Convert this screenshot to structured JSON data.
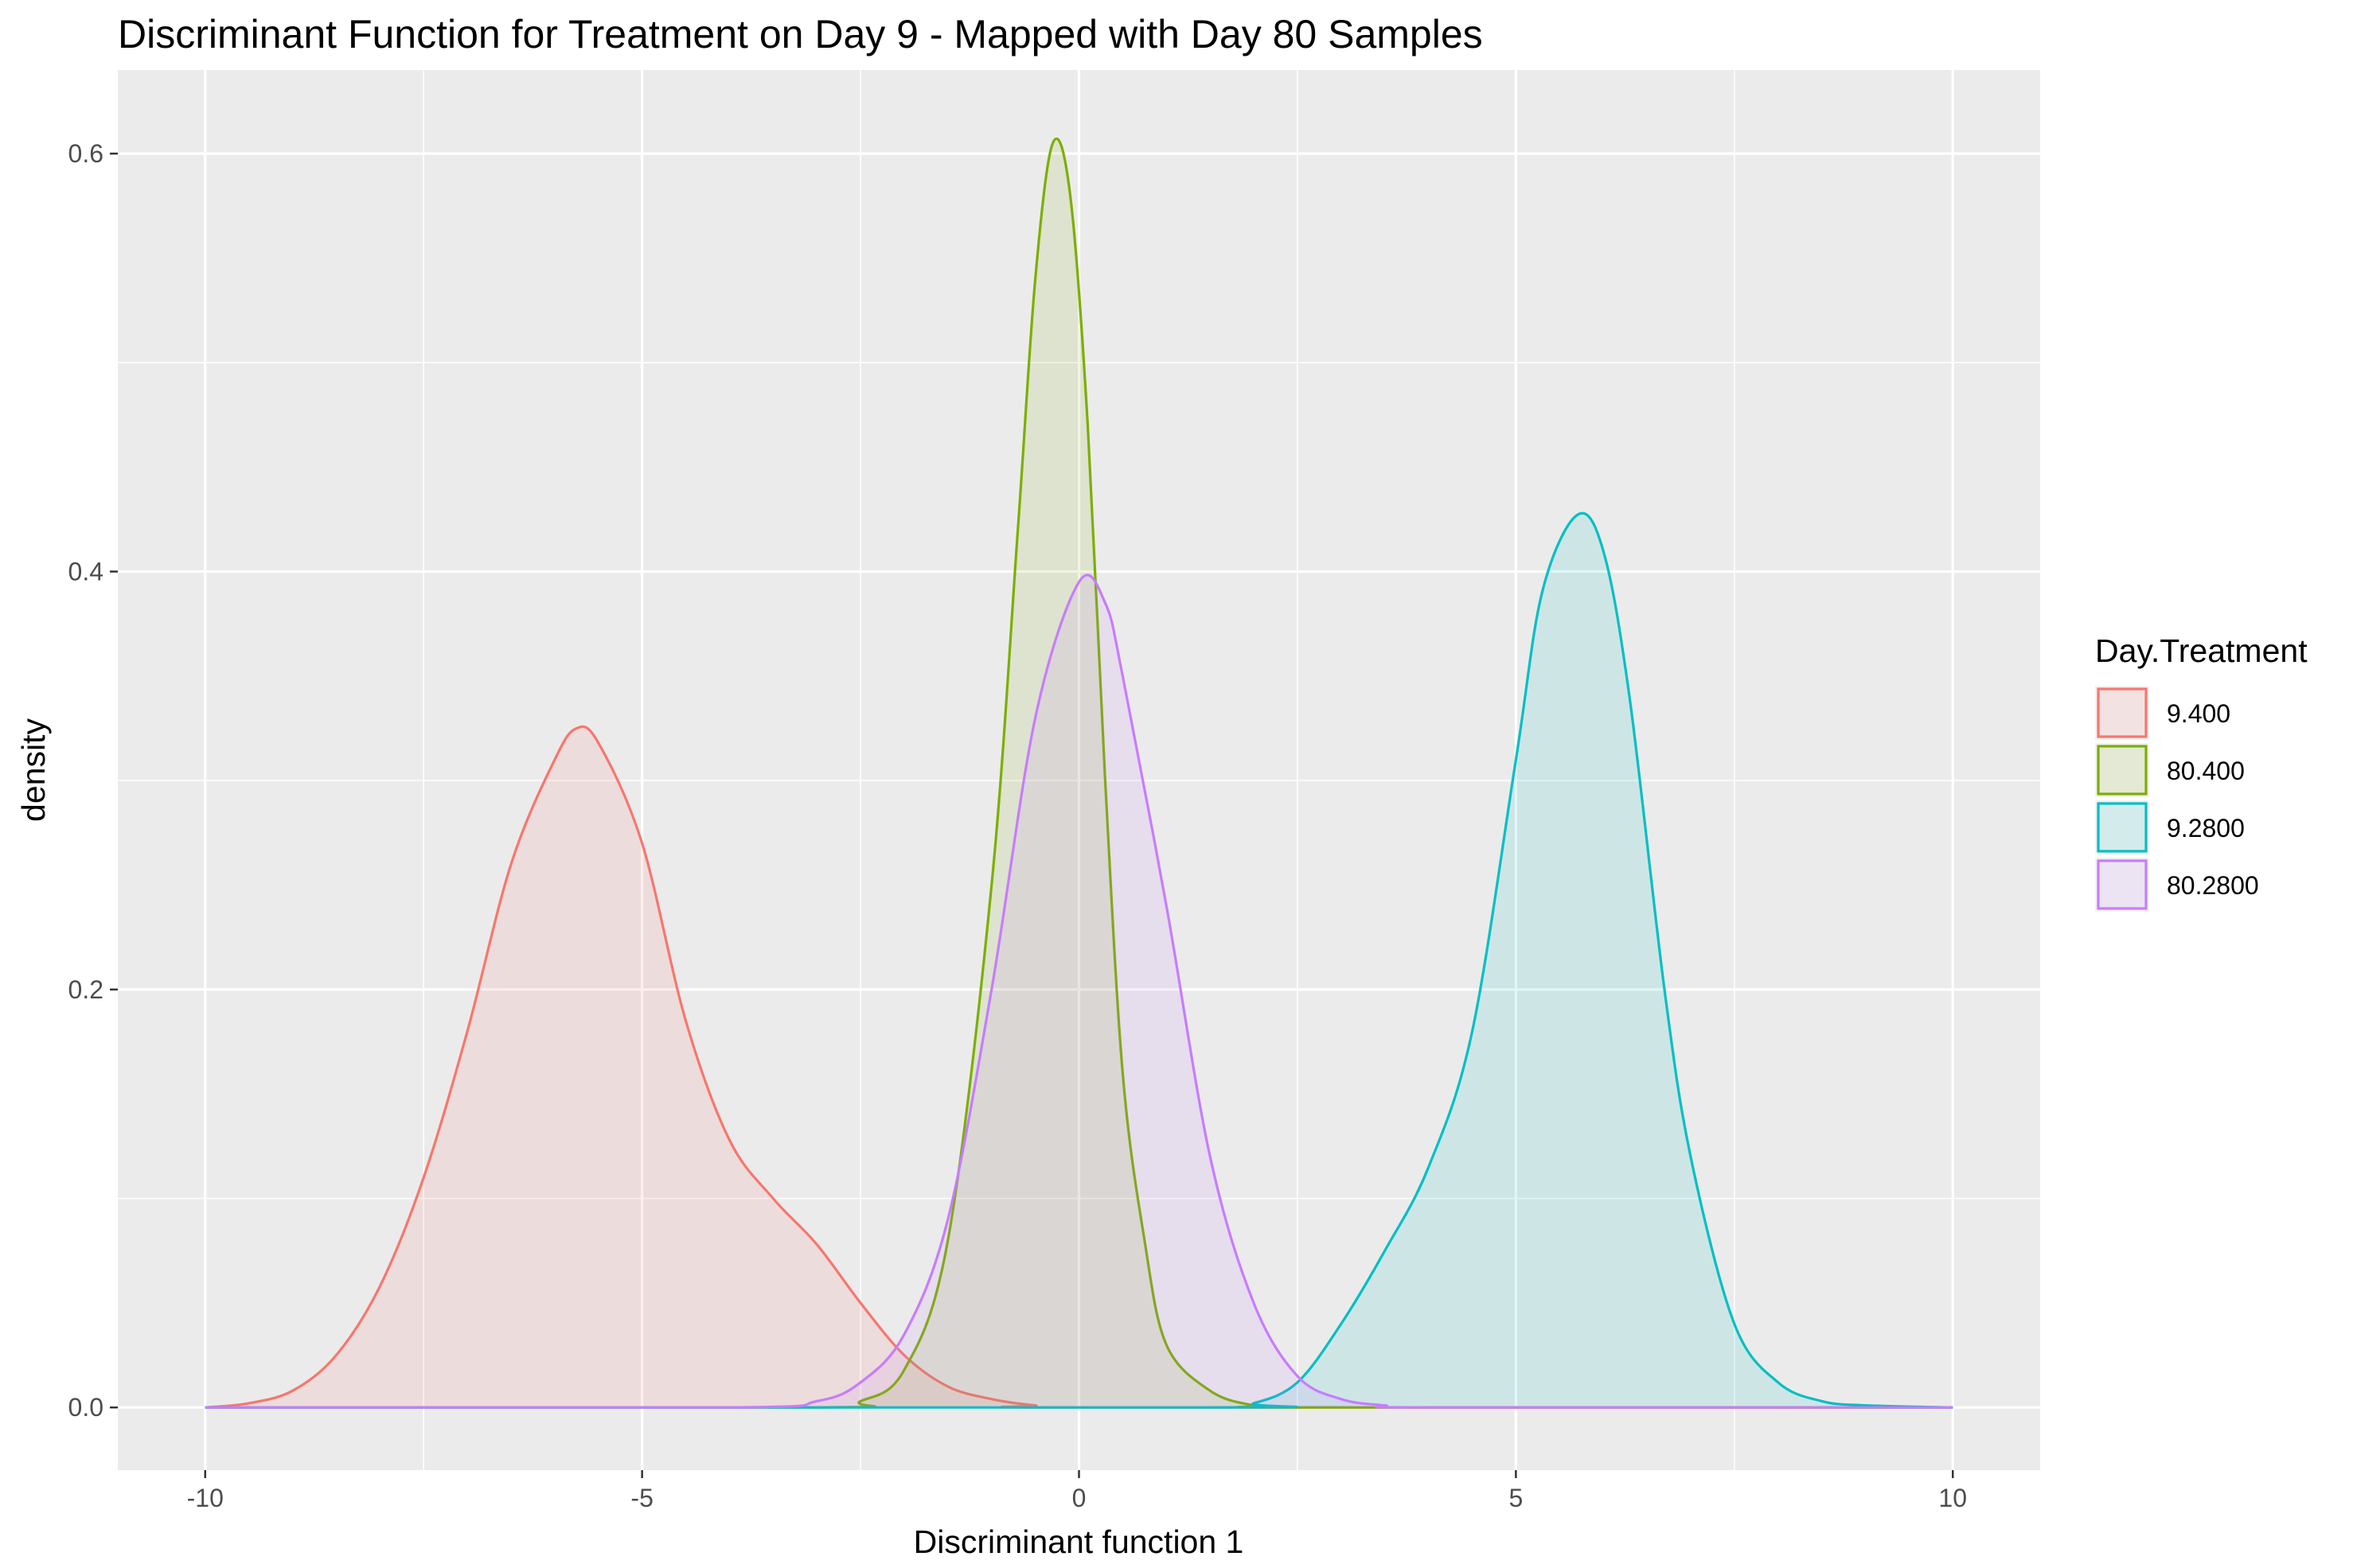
{
  "chart_data": {
    "type": "area",
    "title": "Discriminant Function for Treatment on Day 9 - Mapped with Day 80 Samples",
    "xlabel": "Discriminant function 1",
    "ylabel": "density",
    "xlim": [
      -11,
      11
    ],
    "ylim": [
      -0.03,
      0.64
    ],
    "x_ticks": [
      -10,
      -5,
      0,
      5,
      10
    ],
    "x_tick_labels": [
      "-10",
      "-5",
      "0",
      "5",
      "10"
    ],
    "y_ticks": [
      0.0,
      0.2,
      0.4,
      0.6
    ],
    "y_tick_labels": [
      "0.0",
      "0.2",
      "0.4",
      "0.6"
    ],
    "grid": true,
    "legend": {
      "title": "Day.Treatment",
      "position": "right"
    },
    "series": [
      {
        "name": "9.400",
        "color": "#F8766D",
        "points": [
          [
            -10,
            0
          ],
          [
            -9.5,
            0.002
          ],
          [
            -9,
            0.008
          ],
          [
            -8.5,
            0.025
          ],
          [
            -8,
            0.058
          ],
          [
            -7.5,
            0.11
          ],
          [
            -7,
            0.18
          ],
          [
            -6.5,
            0.26
          ],
          [
            -6,
            0.31
          ],
          [
            -5.75,
            0.325
          ],
          [
            -5.5,
            0.318
          ],
          [
            -5,
            0.27
          ],
          [
            -4.5,
            0.185
          ],
          [
            -4,
            0.128
          ],
          [
            -3.5,
            0.1
          ],
          [
            -3,
            0.078
          ],
          [
            -2.5,
            0.05
          ],
          [
            -2,
            0.025
          ],
          [
            -1.5,
            0.01
          ],
          [
            -1,
            0.004
          ],
          [
            -0.5,
            0.001
          ],
          [
            0,
            0
          ],
          [
            10,
            0
          ]
        ]
      },
      {
        "name": "80.400",
        "color": "#7CAE00",
        "points": [
          [
            -10,
            0
          ],
          [
            -3,
            0
          ],
          [
            -2.5,
            0.003
          ],
          [
            -2,
            0.018
          ],
          [
            -1.5,
            0.08
          ],
          [
            -1,
            0.25
          ],
          [
            -0.7,
            0.42
          ],
          [
            -0.5,
            0.54
          ],
          [
            -0.3,
            0.605
          ],
          [
            -0.1,
            0.58
          ],
          [
            0.1,
            0.47
          ],
          [
            0.3,
            0.3
          ],
          [
            0.5,
            0.16
          ],
          [
            0.75,
            0.08
          ],
          [
            1,
            0.03
          ],
          [
            1.5,
            0.008
          ],
          [
            2,
            0.001
          ],
          [
            2.5,
            0
          ],
          [
            10,
            0
          ]
        ]
      },
      {
        "name": "9.2800",
        "color": "#00BFC4",
        "points": [
          [
            -10,
            0
          ],
          [
            1.5,
            0
          ],
          [
            2,
            0.002
          ],
          [
            2.5,
            0.012
          ],
          [
            3,
            0.04
          ],
          [
            3.5,
            0.075
          ],
          [
            4,
            0.115
          ],
          [
            4.5,
            0.18
          ],
          [
            5,
            0.31
          ],
          [
            5.3,
            0.39
          ],
          [
            5.7,
            0.427
          ],
          [
            6,
            0.41
          ],
          [
            6.3,
            0.34
          ],
          [
            6.7,
            0.2
          ],
          [
            7,
            0.12
          ],
          [
            7.5,
            0.04
          ],
          [
            8,
            0.012
          ],
          [
            8.5,
            0.003
          ],
          [
            9,
            0.001
          ],
          [
            10,
            0
          ]
        ]
      },
      {
        "name": "80.2800",
        "color": "#C77CFF",
        "points": [
          [
            -10,
            0
          ],
          [
            -4,
            0
          ],
          [
            -3,
            0.003
          ],
          [
            -2.5,
            0.012
          ],
          [
            -2,
            0.035
          ],
          [
            -1.5,
            0.09
          ],
          [
            -1,
            0.2
          ],
          [
            -0.5,
            0.33
          ],
          [
            0,
            0.395
          ],
          [
            0.3,
            0.385
          ],
          [
            0.5,
            0.35
          ],
          [
            1,
            0.24
          ],
          [
            1.5,
            0.12
          ],
          [
            2,
            0.05
          ],
          [
            2.5,
            0.015
          ],
          [
            3,
            0.004
          ],
          [
            3.5,
            0.001
          ],
          [
            4,
            0
          ],
          [
            10,
            0
          ]
        ]
      }
    ]
  }
}
